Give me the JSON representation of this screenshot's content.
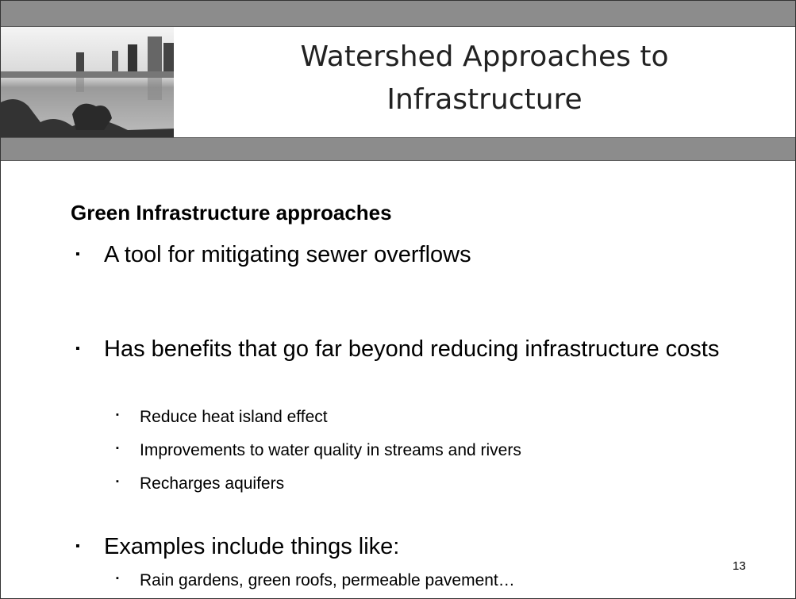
{
  "slide": {
    "title_lines": [
      "Watershed Approaches to",
      "Infrastructure"
    ],
    "heading": "Green Infrastructure approaches",
    "items": [
      {
        "text": "A tool for mitigating sewer overflows",
        "subitems": []
      },
      {
        "text": "Has benefits that go far beyond reducing infrastructure costs",
        "subitems": [
          "Reduce heat island effect",
          "Improvements to water quality in streams and rivers",
          "Recharges aquifers"
        ]
      },
      {
        "text": "Examples include things like:",
        "subitems": [
          "Rain gardens, green roofs, permeable pavement…"
        ]
      }
    ],
    "page_number": "13"
  }
}
